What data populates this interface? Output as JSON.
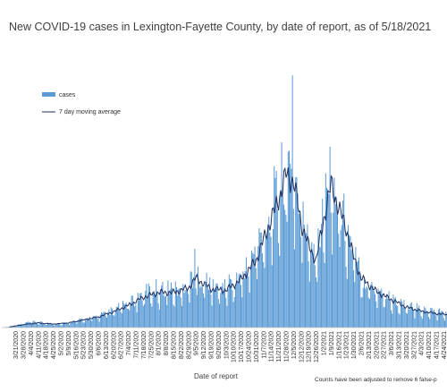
{
  "chart_data": {
    "type": "bar",
    "title": "New COVID-19 cases in Lexington-Fayette County, by date of report, as of 5/18/2021",
    "xlabel": "Date of report",
    "ylabel": "",
    "footnote": "Counts have been adjusted to remove 6 false-p",
    "legend_position": "upper-left",
    "grid": false,
    "x_range": [
      "2020-03-08",
      "2021-04-27"
    ],
    "y_range": [
      0,
      460
    ],
    "x_tick_labels": [
      "3/21/2020",
      "3/28/2020",
      "4/4/2020",
      "4/11/2020",
      "4/18/2020",
      "4/25/2020",
      "5/2/2020",
      "5/9/2020",
      "5/16/2020",
      "5/23/2020",
      "5/30/2020",
      "6/6/2020",
      "6/13/2020",
      "6/20/2020",
      "6/27/2020",
      "7/4/2020",
      "7/11/2020",
      "7/18/2020",
      "7/25/2020",
      "8/1/2020",
      "8/8/2020",
      "8/15/2020",
      "8/22/2020",
      "8/29/2020",
      "9/5/2020",
      "9/12/2020",
      "9/19/2020",
      "9/26/2020",
      "10/3/2020",
      "10/10/2020",
      "10/17/2020",
      "10/24/2020",
      "10/31/2020",
      "11/7/2020",
      "11/14/2020",
      "11/21/2020",
      "11/28/2020",
      "12/5/2020",
      "12/12/2020",
      "12/19/2020",
      "12/26/2020",
      "1/2/2021",
      "1/9/2021",
      "1/16/2021",
      "1/23/2021",
      "1/30/2021",
      "2/6/2021",
      "2/13/2021",
      "2/20/2021",
      "2/27/2021",
      "3/6/2021",
      "3/13/2021",
      "3/20/2021",
      "3/27/2021",
      "4/3/2021",
      "4/10/2021",
      "4/17/2021",
      "4/24/2021"
    ],
    "series": [
      {
        "name": "cases",
        "kind": "bar",
        "color": "#5b9bd5",
        "weekly_mean_values": [
          {
            "x": "2020-03-08",
            "y": 0
          },
          {
            "x": "2020-03-21",
            "y": 3
          },
          {
            "x": "2020-04-04",
            "y": 9
          },
          {
            "x": "2020-04-18",
            "y": 7
          },
          {
            "x": "2020-05-02",
            "y": 6
          },
          {
            "x": "2020-05-16",
            "y": 10
          },
          {
            "x": "2020-05-30",
            "y": 15
          },
          {
            "x": "2020-06-13",
            "y": 22
          },
          {
            "x": "2020-06-27",
            "y": 32
          },
          {
            "x": "2020-07-11",
            "y": 45
          },
          {
            "x": "2020-07-25",
            "y": 60
          },
          {
            "x": "2020-08-08",
            "y": 62
          },
          {
            "x": "2020-08-22",
            "y": 58
          },
          {
            "x": "2020-09-05",
            "y": 85
          },
          {
            "x": "2020-09-12",
            "y": 72
          },
          {
            "x": "2020-09-26",
            "y": 62
          },
          {
            "x": "2020-10-10",
            "y": 70
          },
          {
            "x": "2020-10-24",
            "y": 95
          },
          {
            "x": "2020-11-07",
            "y": 150
          },
          {
            "x": "2020-11-21",
            "y": 210
          },
          {
            "x": "2020-11-28",
            "y": 240
          },
          {
            "x": "2020-12-05",
            "y": 250
          },
          {
            "x": "2020-12-12",
            "y": 175
          },
          {
            "x": "2020-12-19",
            "y": 140
          },
          {
            "x": "2020-12-26",
            "y": 120
          },
          {
            "x": "2021-01-02",
            "y": 190
          },
          {
            "x": "2021-01-09",
            "y": 230
          },
          {
            "x": "2021-01-16",
            "y": 190
          },
          {
            "x": "2021-01-23",
            "y": 160
          },
          {
            "x": "2021-01-30",
            "y": 115
          },
          {
            "x": "2021-02-06",
            "y": 80
          },
          {
            "x": "2021-02-20",
            "y": 60
          },
          {
            "x": "2021-03-06",
            "y": 45
          },
          {
            "x": "2021-03-20",
            "y": 33
          },
          {
            "x": "2021-04-03",
            "y": 28
          },
          {
            "x": "2021-04-17",
            "y": 25
          },
          {
            "x": "2021-04-27",
            "y": 22
          }
        ],
        "peaks": [
          {
            "x": "2020-12-04",
            "y": 432
          },
          {
            "x": "2021-01-08",
            "y": 310
          },
          {
            "x": "2020-09-04",
            "y": 135
          }
        ]
      },
      {
        "name": "7 day moving average",
        "kind": "line",
        "color": "#1f2f5f",
        "values": [
          {
            "x": "2020-03-15",
            "y": 1
          },
          {
            "x": "2020-03-28",
            "y": 5
          },
          {
            "x": "2020-04-11",
            "y": 8
          },
          {
            "x": "2020-04-25",
            "y": 6
          },
          {
            "x": "2020-05-09",
            "y": 8
          },
          {
            "x": "2020-05-23",
            "y": 13
          },
          {
            "x": "2020-06-06",
            "y": 18
          },
          {
            "x": "2020-06-20",
            "y": 27
          },
          {
            "x": "2020-07-04",
            "y": 38
          },
          {
            "x": "2020-07-18",
            "y": 52
          },
          {
            "x": "2020-08-01",
            "y": 60
          },
          {
            "x": "2020-08-15",
            "y": 60
          },
          {
            "x": "2020-08-29",
            "y": 68
          },
          {
            "x": "2020-09-05",
            "y": 85
          },
          {
            "x": "2020-09-19",
            "y": 66
          },
          {
            "x": "2020-10-03",
            "y": 64
          },
          {
            "x": "2020-10-17",
            "y": 82
          },
          {
            "x": "2020-10-31",
            "y": 115
          },
          {
            "x": "2020-11-14",
            "y": 185
          },
          {
            "x": "2020-11-21",
            "y": 220
          },
          {
            "x": "2020-11-28",
            "y": 262
          },
          {
            "x": "2020-12-05",
            "y": 250
          },
          {
            "x": "2020-12-12",
            "y": 180
          },
          {
            "x": "2020-12-19",
            "y": 140
          },
          {
            "x": "2020-12-26",
            "y": 115
          },
          {
            "x": "2021-01-02",
            "y": 185
          },
          {
            "x": "2021-01-09",
            "y": 245
          },
          {
            "x": "2021-01-16",
            "y": 205
          },
          {
            "x": "2021-01-23",
            "y": 170
          },
          {
            "x": "2021-01-30",
            "y": 120
          },
          {
            "x": "2021-02-06",
            "y": 85
          },
          {
            "x": "2021-02-20",
            "y": 62
          },
          {
            "x": "2021-03-06",
            "y": 48
          },
          {
            "x": "2021-03-20",
            "y": 35
          },
          {
            "x": "2021-04-03",
            "y": 28
          },
          {
            "x": "2021-04-17",
            "y": 24
          },
          {
            "x": "2021-04-27",
            "y": 22
          }
        ]
      }
    ]
  }
}
